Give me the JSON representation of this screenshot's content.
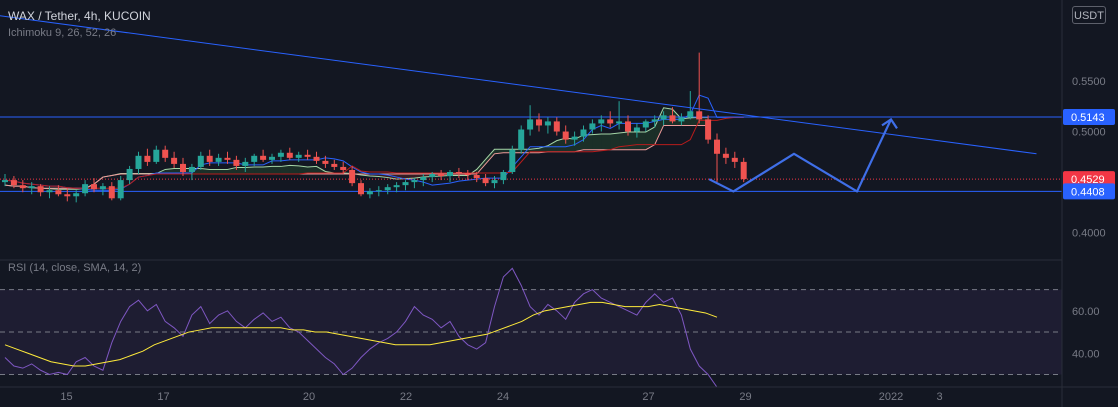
{
  "header": {
    "symbol_line": "WAX / Tether, 4h, KUCOIN",
    "indicator_line": "Ichimoku 9, 26, 52, 26",
    "currency_button": "USDT"
  },
  "rsi_panel": {
    "label": "RSI (14, close, SMA, 14, 2)"
  },
  "colors": {
    "background": "#131722",
    "candle_up": "#26a69a",
    "candle_down": "#ef5350",
    "tenkan": "#2962ff",
    "kijun": "#b71c1c",
    "span_a": "#a5d6a7",
    "span_b": "#ef9a9a",
    "drawing_blue": "#2962ff",
    "rsi": "#7e57c2",
    "rsi_ma": "#ffeb3b",
    "price_tag_red": "#f23645",
    "price_tag_blue": "#2962ff"
  },
  "chart_data": [
    {
      "type": "candlestick",
      "symbol": "WAX / Tether",
      "interval": "4h",
      "exchange": "KUCOIN",
      "x_ticks": [
        "15",
        "17",
        "20",
        "22",
        "24",
        "27",
        "29",
        "2022",
        "3"
      ],
      "y_ticks": [
        "0.5500",
        "0.5000",
        "0.4000"
      ],
      "y_range": [
        0.375,
        0.63
      ],
      "price_tags": [
        {
          "label": "0.5143",
          "value": 0.5143,
          "color": "#2962ff"
        },
        {
          "label": "0.4529",
          "value": 0.4529,
          "color": "#f23645"
        },
        {
          "label": "0.4408",
          "value": 0.4408,
          "color": "#2962ff"
        }
      ],
      "horizontal_lines": [
        0.5143,
        0.4408
      ],
      "trendline": {
        "from": {
          "day": 11.5,
          "price": 0.628
        },
        "to": {
          "day": 35.0,
          "price": 0.478
        }
      },
      "projection_path": [
        {
          "day": 28.25,
          "price": 0.4529
        },
        {
          "day": 28.75,
          "price": 0.4408
        },
        {
          "day": 30.0,
          "price": 0.478
        },
        {
          "day": 31.3,
          "price": 0.4408
        },
        {
          "day": 32.0,
          "price": 0.512
        }
      ],
      "candles_ohlc": [
        [
          0.45,
          0.458,
          0.446,
          0.452
        ],
        [
          0.452,
          0.456,
          0.444,
          0.447
        ],
        [
          0.447,
          0.452,
          0.44,
          0.444
        ],
        [
          0.444,
          0.45,
          0.438,
          0.446
        ],
        [
          0.446,
          0.448,
          0.436,
          0.44
        ],
        [
          0.44,
          0.446,
          0.434,
          0.442
        ],
        [
          0.442,
          0.447,
          0.436,
          0.438
        ],
        [
          0.438,
          0.444,
          0.431,
          0.436
        ],
        [
          0.436,
          0.442,
          0.43,
          0.439
        ],
        [
          0.439,
          0.452,
          0.436,
          0.448
        ],
        [
          0.448,
          0.454,
          0.44,
          0.443
        ],
        [
          0.443,
          0.449,
          0.437,
          0.446
        ],
        [
          0.446,
          0.45,
          0.432,
          0.434
        ],
        [
          0.434,
          0.456,
          0.432,
          0.452
        ],
        [
          0.452,
          0.466,
          0.448,
          0.463
        ],
        [
          0.463,
          0.48,
          0.458,
          0.476
        ],
        [
          0.476,
          0.483,
          0.466,
          0.47
        ],
        [
          0.47,
          0.486,
          0.468,
          0.482
        ],
        [
          0.482,
          0.486,
          0.47,
          0.474
        ],
        [
          0.474,
          0.48,
          0.464,
          0.468
        ],
        [
          0.468,
          0.474,
          0.456,
          0.46
        ],
        [
          0.46,
          0.468,
          0.452,
          0.465
        ],
        [
          0.465,
          0.48,
          0.462,
          0.476
        ],
        [
          0.476,
          0.482,
          0.466,
          0.47
        ],
        [
          0.47,
          0.478,
          0.466,
          0.474
        ],
        [
          0.474,
          0.48,
          0.468,
          0.472
        ],
        [
          0.472,
          0.476,
          0.462,
          0.466
        ],
        [
          0.466,
          0.474,
          0.46,
          0.47
        ],
        [
          0.47,
          0.478,
          0.466,
          0.476
        ],
        [
          0.476,
          0.482,
          0.47,
          0.472
        ],
        [
          0.472,
          0.478,
          0.468,
          0.475
        ],
        [
          0.475,
          0.482,
          0.47,
          0.479
        ],
        [
          0.479,
          0.484,
          0.472,
          0.474
        ],
        [
          0.474,
          0.48,
          0.47,
          0.477
        ],
        [
          0.477,
          0.482,
          0.472,
          0.475
        ],
        [
          0.475,
          0.48,
          0.468,
          0.471
        ],
        [
          0.471,
          0.476,
          0.464,
          0.468
        ],
        [
          0.468,
          0.472,
          0.462,
          0.465
        ],
        [
          0.465,
          0.47,
          0.458,
          0.462
        ],
        [
          0.462,
          0.466,
          0.446,
          0.449
        ],
        [
          0.449,
          0.452,
          0.436,
          0.438
        ],
        [
          0.438,
          0.444,
          0.434,
          0.441
        ],
        [
          0.441,
          0.446,
          0.436,
          0.442
        ],
        [
          0.442,
          0.448,
          0.438,
          0.445
        ],
        [
          0.445,
          0.45,
          0.44,
          0.447
        ],
        [
          0.447,
          0.452,
          0.442,
          0.45
        ],
        [
          0.45,
          0.454,
          0.444,
          0.452
        ],
        [
          0.452,
          0.458,
          0.446,
          0.455
        ],
        [
          0.455,
          0.46,
          0.45,
          0.458
        ],
        [
          0.458,
          0.462,
          0.452,
          0.456
        ],
        [
          0.456,
          0.462,
          0.45,
          0.46
        ],
        [
          0.46,
          0.464,
          0.454,
          0.459
        ],
        [
          0.459,
          0.462,
          0.452,
          0.457
        ],
        [
          0.457,
          0.46,
          0.45,
          0.454
        ],
        [
          0.454,
          0.458,
          0.446,
          0.449
        ],
        [
          0.449,
          0.456,
          0.444,
          0.452
        ],
        [
          0.452,
          0.462,
          0.448,
          0.46
        ],
        [
          0.46,
          0.486,
          0.458,
          0.482
        ],
        [
          0.482,
          0.506,
          0.478,
          0.502
        ],
        [
          0.502,
          0.526,
          0.496,
          0.512
        ],
        [
          0.512,
          0.518,
          0.5,
          0.506
        ],
        [
          0.506,
          0.514,
          0.498,
          0.51
        ],
        [
          0.51,
          0.514,
          0.496,
          0.5
        ],
        [
          0.5,
          0.506,
          0.488,
          0.492
        ],
        [
          0.492,
          0.5,
          0.486,
          0.495
        ],
        [
          0.495,
          0.506,
          0.49,
          0.502
        ],
        [
          0.502,
          0.512,
          0.498,
          0.508
        ],
        [
          0.508,
          0.516,
          0.5,
          0.512
        ],
        [
          0.512,
          0.52,
          0.504,
          0.508
        ],
        [
          0.508,
          0.53,
          0.502,
          0.51
        ],
        [
          0.51,
          0.516,
          0.496,
          0.5
        ],
        [
          0.5,
          0.508,
          0.494,
          0.504
        ],
        [
          0.504,
          0.512,
          0.5,
          0.51
        ],
        [
          0.51,
          0.516,
          0.504,
          0.512
        ],
        [
          0.512,
          0.52,
          0.506,
          0.516
        ],
        [
          0.516,
          0.524,
          0.508,
          0.51
        ],
        [
          0.51,
          0.518,
          0.506,
          0.514
        ],
        [
          0.514,
          0.54,
          0.512,
          0.52
        ],
        [
          0.52,
          0.578,
          0.508,
          0.512
        ],
        [
          0.512,
          0.516,
          0.488,
          0.492
        ],
        [
          0.492,
          0.498,
          0.45,
          0.478
        ],
        [
          0.478,
          0.484,
          0.468,
          0.474
        ],
        [
          0.474,
          0.48,
          0.464,
          0.47
        ],
        [
          0.47,
          0.474,
          0.45,
          0.453
        ]
      ]
    },
    {
      "type": "line",
      "title": "RSI",
      "y_ticks": [
        "60.00",
        "40.00"
      ],
      "y_range": [
        26,
        83
      ],
      "bands": [
        70,
        50,
        30
      ],
      "rsi_values": [
        38,
        34,
        33,
        35,
        32,
        30,
        31,
        30,
        36,
        38,
        34,
        32,
        45,
        55,
        62,
        65,
        60,
        63,
        55,
        52,
        48,
        58,
        62,
        54,
        58,
        60,
        55,
        52,
        56,
        59,
        55,
        57,
        52,
        50,
        46,
        42,
        38,
        35,
        30,
        33,
        38,
        42,
        45,
        47,
        50,
        55,
        62,
        58,
        56,
        52,
        55,
        48,
        44,
        42,
        45,
        62,
        76,
        80,
        72,
        62,
        58,
        63,
        60,
        56,
        64,
        68,
        70,
        66,
        64,
        62,
        60,
        58,
        64,
        68,
        64,
        66,
        58,
        42,
        34,
        30,
        24
      ],
      "rsi_sma_values": [
        44,
        42,
        40,
        38,
        36,
        35,
        34,
        34,
        35,
        36,
        37,
        39,
        41,
        44,
        46,
        48,
        50,
        51,
        52,
        52,
        52,
        52,
        52,
        52,
        52,
        51,
        51,
        50,
        50,
        49,
        48,
        47,
        46,
        45,
        44,
        44,
        44,
        44,
        45,
        46,
        47,
        48,
        49,
        51,
        53,
        55,
        58,
        60,
        61,
        62,
        63,
        64,
        64,
        63,
        62,
        62,
        62,
        63,
        62,
        61,
        60,
        59,
        57
      ]
    }
  ]
}
